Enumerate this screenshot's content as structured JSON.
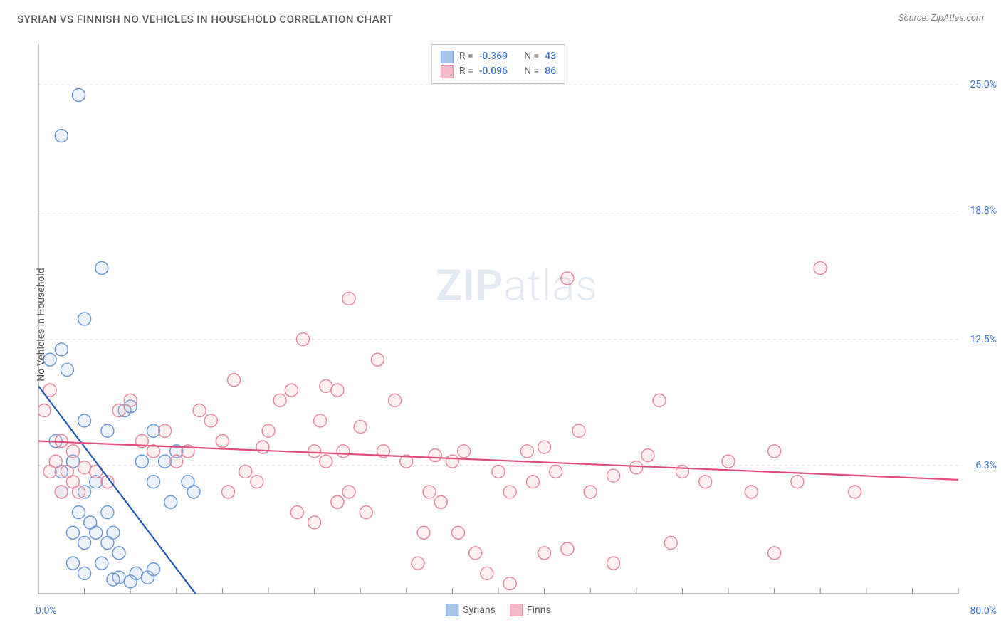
{
  "title": "SYRIAN VS FINNISH NO VEHICLES IN HOUSEHOLD CORRELATION CHART",
  "source_label": "Source: ZipAtlas.com",
  "ylabel": "No Vehicles in Household",
  "watermark": {
    "bold": "ZIP",
    "light": "atlas"
  },
  "chart": {
    "type": "scatter",
    "xlim": [
      0,
      80
    ],
    "ylim": [
      0,
      27
    ],
    "x_ticks_minor_step": 4,
    "y_gridlines": [
      6.3,
      12.5,
      18.8,
      25.0
    ],
    "y_tick_labels": [
      "6.3%",
      "12.5%",
      "18.8%",
      "25.0%"
    ],
    "x_min_label": "0.0%",
    "x_max_label": "80.0%",
    "background_color": "#ffffff",
    "grid_color": "#d8d8d8",
    "axis_color": "#888",
    "marker_radius": 9,
    "marker_stroke_width": 1.5,
    "marker_fill_opacity": 0.22,
    "line_width": 2.2
  },
  "series": [
    {
      "name": "Syrians",
      "color_stroke": "#6a9ad6",
      "color_fill": "#a8c5ea",
      "line_color": "#1e5ab8",
      "R": "-0.369",
      "N": "43",
      "regression": {
        "x1": 0,
        "y1": 10.2,
        "x2": 15,
        "y2": -1
      },
      "points": [
        [
          3.5,
          24.5
        ],
        [
          2,
          22.5
        ],
        [
          1,
          11.5
        ],
        [
          2,
          12
        ],
        [
          5.5,
          16
        ],
        [
          4,
          13.5
        ],
        [
          2.5,
          11
        ],
        [
          1.5,
          7.5
        ],
        [
          4,
          8.5
        ],
        [
          6,
          8
        ],
        [
          7.5,
          9
        ],
        [
          8,
          9.2
        ],
        [
          10,
          8
        ],
        [
          3,
          6.5
        ],
        [
          2,
          6
        ],
        [
          4,
          5
        ],
        [
          5,
          5.5
        ],
        [
          3.5,
          4
        ],
        [
          6,
          4
        ],
        [
          2,
          5
        ],
        [
          4.5,
          3.5
        ],
        [
          5,
          3
        ],
        [
          6.5,
          3
        ],
        [
          6,
          2.5
        ],
        [
          7,
          2
        ],
        [
          4,
          2.5
        ],
        [
          3,
          3
        ],
        [
          5.5,
          1.5
        ],
        [
          3,
          1.5
        ],
        [
          4,
          1
        ],
        [
          9,
          6.5
        ],
        [
          10,
          5.5
        ],
        [
          11,
          6.5
        ],
        [
          12,
          7
        ],
        [
          13,
          5.5
        ],
        [
          11.5,
          4.5
        ],
        [
          13.5,
          5
        ],
        [
          8.5,
          1
        ],
        [
          9.5,
          0.8
        ],
        [
          10,
          1.2
        ],
        [
          7,
          0.8
        ],
        [
          8,
          0.6
        ],
        [
          6.5,
          0.7
        ]
      ]
    },
    {
      "name": "Finns",
      "color_stroke": "#e88aa0",
      "color_fill": "#f5bac8",
      "line_color": "#e04d7d",
      "R": "-0.096",
      "N": "86",
      "regression": {
        "x1": 0,
        "y1": 7.5,
        "x2": 80,
        "y2": 5.6
      },
      "points": [
        [
          1,
          10
        ],
        [
          0.5,
          9
        ],
        [
          2,
          7.5
        ],
        [
          3,
          7
        ],
        [
          1.5,
          6.5
        ],
        [
          2.5,
          6
        ],
        [
          3,
          5.5
        ],
        [
          1,
          6
        ],
        [
          2,
          5
        ],
        [
          4,
          6.2
        ],
        [
          3.5,
          5
        ],
        [
          5,
          6
        ],
        [
          6,
          5.5
        ],
        [
          7,
          9
        ],
        [
          8,
          9.5
        ],
        [
          9,
          7.5
        ],
        [
          10,
          7
        ],
        [
          11,
          8
        ],
        [
          12,
          6.5
        ],
        [
          13,
          7
        ],
        [
          14,
          9
        ],
        [
          15,
          8.5
        ],
        [
          16,
          7.5
        ],
        [
          17,
          10.5
        ],
        [
          18,
          6
        ],
        [
          16.5,
          5
        ],
        [
          19,
          5.5
        ],
        [
          20,
          8
        ],
        [
          21,
          9.5
        ],
        [
          22,
          10
        ],
        [
          23,
          12.5
        ],
        [
          24,
          7
        ],
        [
          25,
          10.2
        ],
        [
          26,
          10
        ],
        [
          27,
          14.5
        ],
        [
          24.5,
          8.5
        ],
        [
          26.5,
          7
        ],
        [
          28,
          8.2
        ],
        [
          29.5,
          11.5
        ],
        [
          25,
          6.5
        ],
        [
          27,
          5
        ],
        [
          26,
          4.5
        ],
        [
          28.5,
          4
        ],
        [
          24,
          3.5
        ],
        [
          30,
          7
        ],
        [
          31,
          9.5
        ],
        [
          32,
          6.5
        ],
        [
          33,
          1.5
        ],
        [
          33.5,
          3
        ],
        [
          34,
          5
        ],
        [
          35,
          4.5
        ],
        [
          36,
          6.5
        ],
        [
          37,
          7
        ],
        [
          36.5,
          3
        ],
        [
          38,
          2
        ],
        [
          39,
          1
        ],
        [
          40,
          6
        ],
        [
          41,
          5
        ],
        [
          42.5,
          7
        ],
        [
          43,
          5.5
        ],
        [
          44,
          7.2
        ],
        [
          45,
          6
        ],
        [
          46,
          15.5
        ],
        [
          41,
          0.5
        ],
        [
          47,
          8
        ],
        [
          50,
          5.8
        ],
        [
          52,
          6.2
        ],
        [
          54,
          9.5
        ],
        [
          56,
          6
        ],
        [
          55,
          2.5
        ],
        [
          58,
          5.5
        ],
        [
          60,
          6.5
        ],
        [
          62,
          5
        ],
        [
          64,
          7
        ],
        [
          44,
          2
        ],
        [
          46,
          2.2
        ],
        [
          48,
          5
        ],
        [
          50,
          1.5
        ],
        [
          64,
          2
        ],
        [
          66,
          5.5
        ],
        [
          68,
          16
        ],
        [
          71,
          5
        ],
        [
          53,
          6.8
        ],
        [
          34.5,
          6.8
        ],
        [
          22.5,
          4
        ],
        [
          19.5,
          7.2
        ]
      ]
    }
  ],
  "legend_stats": {
    "R_prefix": "R =",
    "N_prefix": "N ="
  },
  "bottom_legend": [
    "Syrians",
    "Finns"
  ]
}
